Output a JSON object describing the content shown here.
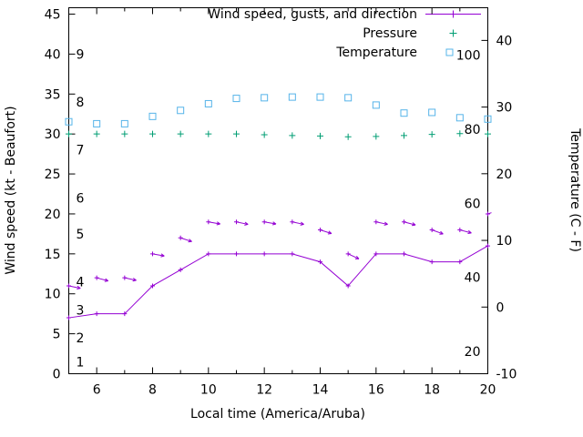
{
  "axes": {
    "x_label": "Local time (America/Aruba)",
    "y_left_label": "Wind speed (kt - Beaufort)",
    "y_right_label": "Temperature (C - F)"
  },
  "legend": [
    {
      "label": "Wind speed, gusts, and direction",
      "marker": "line-with-plus",
      "color": "#9400d3"
    },
    {
      "label": "Pressure",
      "marker": "plus",
      "color": "#009e73"
    },
    {
      "label": "Temperature",
      "marker": "open-square",
      "color": "#56b4e9"
    }
  ],
  "chart_data": {
    "type": "line",
    "title": "",
    "xlabel": "Local time (America/Aruba)",
    "ylabel_left": "Wind speed (kt - Beaufort)",
    "ylabel_right": "Temperature (C - F)",
    "x_hours": [
      5,
      6,
      7,
      8,
      9,
      10,
      11,
      12,
      13,
      14,
      15,
      16,
      17,
      18,
      19,
      20
    ],
    "x_range": [
      5,
      20
    ],
    "x_major_ticks": [
      6,
      8,
      10,
      12,
      14,
      16,
      18,
      20
    ],
    "x_minor_ticks": [
      5,
      7,
      9,
      11,
      13,
      15,
      17,
      19
    ],
    "y_left_range": [
      0,
      45.8
    ],
    "y_left_ticks": [
      0,
      5,
      10,
      15,
      20,
      25,
      30,
      35,
      40,
      45
    ],
    "y_right_range": [
      -10,
      44.9
    ],
    "y_right_ticks": [
      -10,
      0,
      10,
      20,
      30,
      40
    ],
    "beaufort_labels": [
      {
        "beaufort": "1",
        "kt": 1.5
      },
      {
        "beaufort": "2",
        "kt": 4.5
      },
      {
        "beaufort": "3",
        "kt": 8
      },
      {
        "beaufort": "4",
        "kt": 11.5
      },
      {
        "beaufort": "5",
        "kt": 17.5
      },
      {
        "beaufort": "6",
        "kt": 22
      },
      {
        "beaufort": "7",
        "kt": 28
      },
      {
        "beaufort": "8",
        "kt": 34
      },
      {
        "beaufort": "9",
        "kt": 40
      }
    ],
    "fahrenheit_labels": [
      20,
      40,
      60,
      80,
      100
    ],
    "grid": false,
    "legend_position": "top-right-inside",
    "series": [
      {
        "name": "Wind speed",
        "unit": "kt",
        "axis": "left",
        "style": "linespoints",
        "color": "#9400d3",
        "values": [
          7,
          7.5,
          7.5,
          11,
          13,
          15,
          15,
          15,
          15,
          14,
          11,
          15,
          15,
          14,
          14,
          16
        ]
      },
      {
        "name": "Wind gusts",
        "unit": "kt",
        "axis": "left",
        "style": "vectors",
        "color": "#9400d3",
        "values": [
          11,
          12,
          12,
          15,
          17,
          19,
          19,
          19,
          19,
          18,
          15,
          19,
          19,
          18,
          18,
          20
        ],
        "dir_deg": [
          12,
          15,
          12,
          10,
          18,
          10,
          12,
          10,
          12,
          18,
          25,
          12,
          15,
          20,
          15,
          -18
        ]
      },
      {
        "name": "Pressure",
        "unit": "inHg",
        "axis": "left",
        "style": "points-plus",
        "color": "#009e73",
        "values": [
          30,
          30,
          30,
          30,
          30,
          30,
          30,
          29.9,
          29.8,
          29.75,
          29.65,
          29.7,
          29.8,
          29.95,
          30.05,
          30
        ]
      },
      {
        "name": "Temperature",
        "unit": "C",
        "axis": "right",
        "style": "points-square",
        "color": "#56b4e9",
        "values": [
          27.8,
          27.5,
          27.5,
          28.6,
          29.5,
          30.5,
          31.3,
          31.4,
          31.5,
          31.5,
          31.4,
          30.3,
          29.1,
          29.2,
          28.4,
          28.2
        ]
      }
    ]
  }
}
